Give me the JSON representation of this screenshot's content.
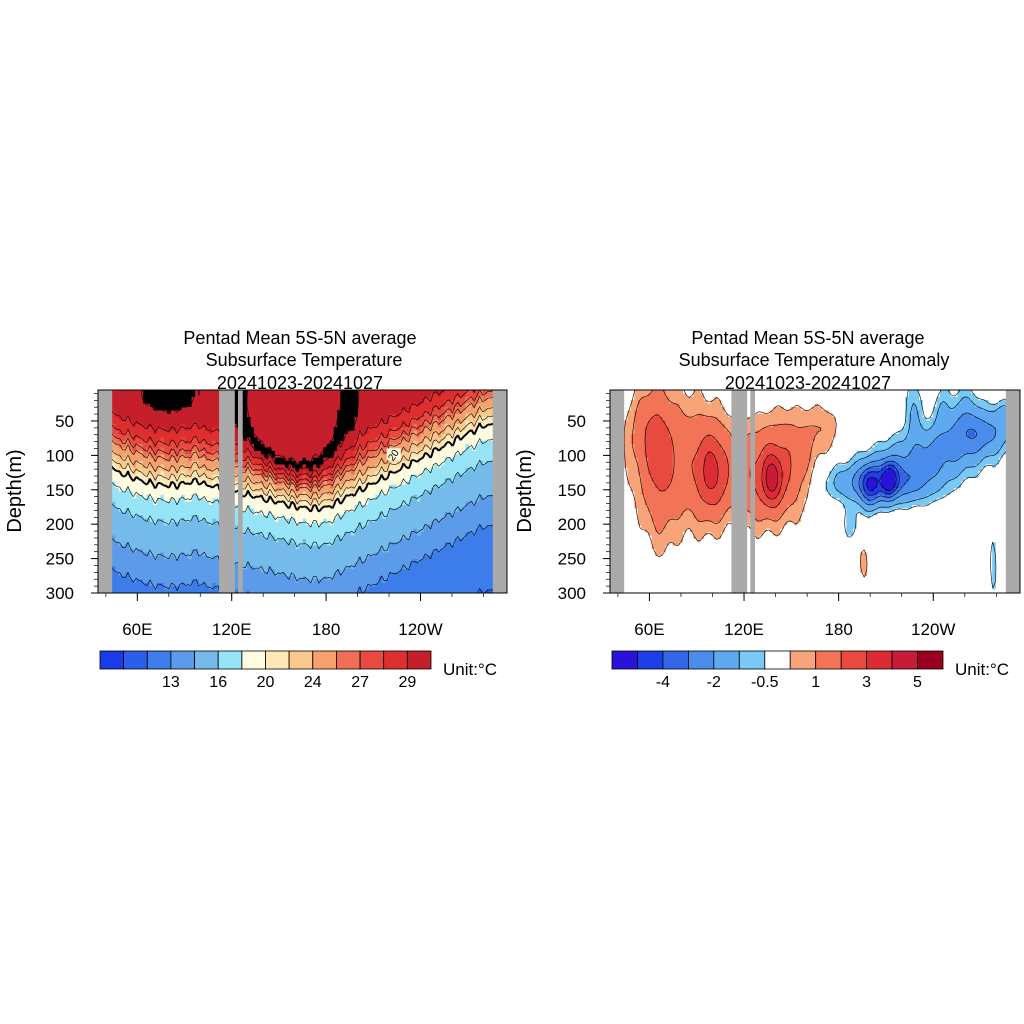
{
  "chart_data": [
    {
      "type": "heatmap",
      "title": [
        "Pentad Mean 5S-5N average",
        "Subsurface Temperature",
        "20241023-20241027"
      ],
      "ylabel": "Depth(m)",
      "xlabel": "",
      "x_ticks": [
        "60E",
        "120E",
        "180",
        "120W"
      ],
      "y_ticks": [
        "50",
        "100",
        "150",
        "200",
        "250",
        "300"
      ],
      "x_range_lon_east": [
        35,
        295
      ],
      "y_range_depth_m": [
        5,
        300
      ],
      "colorbar": {
        "levels": [
          11,
          12,
          13,
          14,
          16,
          18,
          20,
          22,
          24,
          26,
          27,
          28,
          29,
          30,
          31
        ],
        "labels": [
          "13",
          "16",
          "20",
          "24",
          "27",
          "29"
        ],
        "colors": [
          "#1c3be8",
          "#2c5fe9",
          "#3d7ceb",
          "#5b9bea",
          "#74bbec",
          "#96e4f5",
          "#fefce0",
          "#fde8b6",
          "#fbc88e",
          "#f5a06d",
          "#ef6f55",
          "#e84a3f",
          "#de2e2e",
          "#c51f2b"
        ],
        "unit": "Unit:°C"
      },
      "contour_label": "20",
      "land_mask_color": "#aaaaaa"
    },
    {
      "type": "heatmap",
      "title": [
        "Pentad Mean 5S-5N average",
        "Subsurface Temperature Anomaly",
        "20241023-20241027"
      ],
      "ylabel": "Depth(m)",
      "xlabel": "",
      "x_ticks": [
        "60E",
        "120E",
        "180",
        "120W"
      ],
      "y_ticks": [
        "50",
        "100",
        "150",
        "200",
        "250",
        "300"
      ],
      "x_range_lon_east": [
        35,
        295
      ],
      "y_range_depth_m": [
        5,
        300
      ],
      "colorbar": {
        "levels": [
          -5,
          -4,
          -3,
          -2,
          -1,
          -0.5,
          0.5,
          1,
          2,
          3,
          4,
          5
        ],
        "labels": [
          "-4",
          "-2",
          "-0.5",
          "1",
          "3",
          "5"
        ],
        "colors": [
          "#2a13d8",
          "#1f3fe6",
          "#3366e6",
          "#4a8cec",
          "#5fa9f0",
          "#78c9f5",
          "#ffffff",
          "#f9a378",
          "#f27356",
          "#e84a3f",
          "#dd2b36",
          "#c91a38",
          "#99001f"
        ],
        "unit": "Unit:°C"
      },
      "land_mask_color": "#aaaaaa"
    }
  ]
}
